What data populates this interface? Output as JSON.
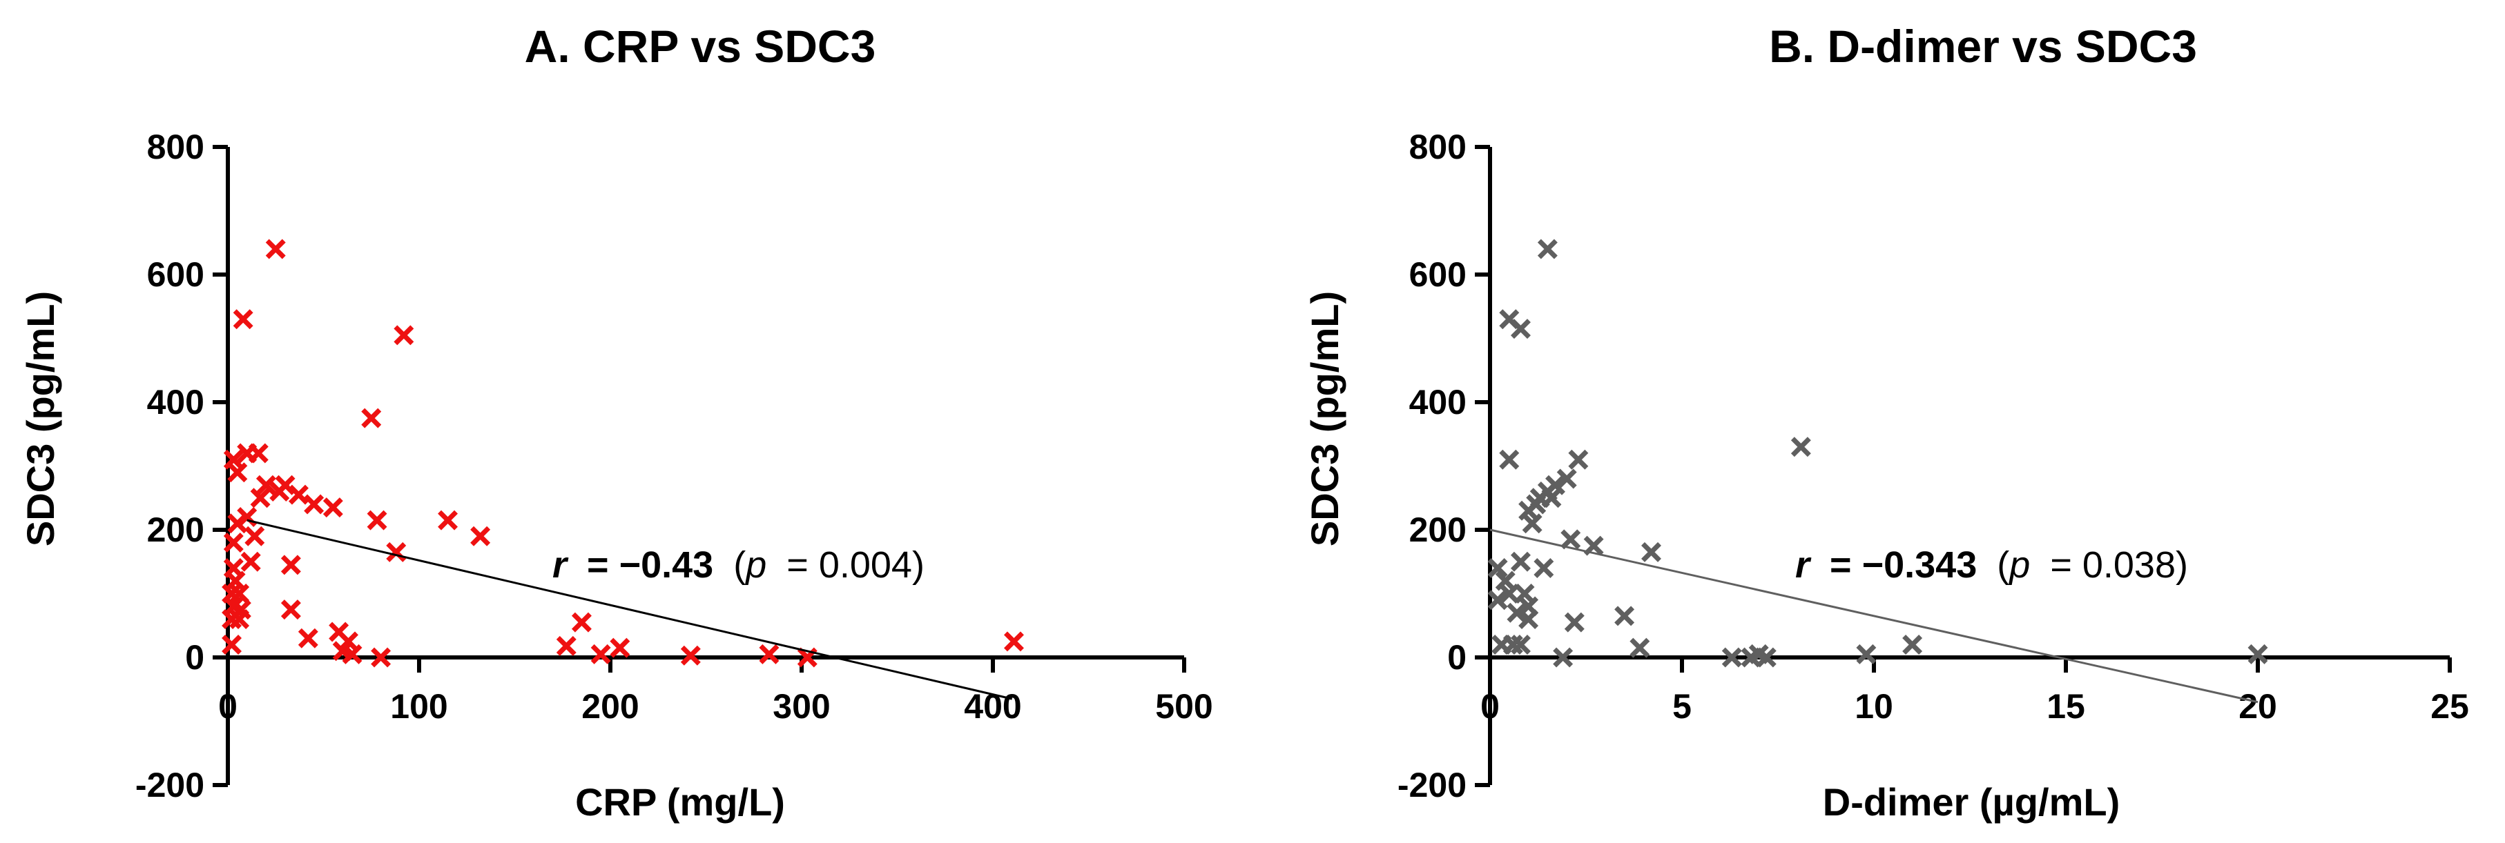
{
  "chart_data": [
    {
      "type": "scatter",
      "panel": "A",
      "title": "A. CRP vs SDC3",
      "xlabel": "CRP (mg/L)",
      "ylabel": "SDC3 (pg/mL)",
      "xlim": [
        0,
        500
      ],
      "ylim": [
        -200,
        800
      ],
      "xticks": [
        0,
        100,
        200,
        300,
        400,
        500
      ],
      "xtick_labels": [
        "0",
        "100",
        "200",
        "300",
        "400",
        "500"
      ],
      "yticks": [
        -200,
        0,
        200,
        400,
        600,
        800
      ],
      "ytick_labels": [
        "-200",
        "0",
        "200",
        "400",
        "600",
        "800"
      ],
      "marker": "x",
      "color": "#ee1111",
      "annotation": {
        "r_label": "r",
        "r_value": "= −0.43",
        "p_open": "(",
        "p_label": "p",
        "p_value": "= 0.004)"
      },
      "regression": {
        "x": [
          10,
          410
        ],
        "y": [
          215,
          -65
        ],
        "color": "#000000"
      },
      "points": [
        [
          2,
          20
        ],
        [
          2,
          60
        ],
        [
          3,
          80
        ],
        [
          2,
          100
        ],
        [
          4,
          120
        ],
        [
          3,
          140
        ],
        [
          3,
          180
        ],
        [
          5,
          210
        ],
        [
          3,
          310
        ],
        [
          5,
          290
        ],
        [
          6,
          100
        ],
        [
          6,
          60
        ],
        [
          7,
          75
        ],
        [
          8,
          530
        ],
        [
          10,
          320
        ],
        [
          10,
          220
        ],
        [
          12,
          150
        ],
        [
          14,
          190
        ],
        [
          16,
          320
        ],
        [
          17,
          250
        ],
        [
          20,
          270
        ],
        [
          25,
          640
        ],
        [
          27,
          260
        ],
        [
          30,
          270
        ],
        [
          33,
          145
        ],
        [
          33,
          75
        ],
        [
          37,
          255
        ],
        [
          42,
          30
        ],
        [
          45,
          240
        ],
        [
          55,
          235
        ],
        [
          58,
          40
        ],
        [
          60,
          10
        ],
        [
          63,
          25
        ],
        [
          65,
          5
        ],
        [
          75,
          375
        ],
        [
          78,
          215
        ],
        [
          80,
          0
        ],
        [
          88,
          165
        ],
        [
          92,
          505
        ],
        [
          115,
          215
        ],
        [
          132,
          190
        ],
        [
          177,
          18
        ],
        [
          185,
          55
        ],
        [
          195,
          5
        ],
        [
          205,
          15
        ],
        [
          242,
          3
        ],
        [
          283,
          5
        ],
        [
          303,
          0
        ],
        [
          411,
          25
        ]
      ]
    },
    {
      "type": "scatter",
      "panel": "B",
      "title": "B. D-dimer vs SDC3",
      "xlabel": "D-dimer (µg/mL)",
      "ylabel": "SDC3 (pg/mL)",
      "xlim": [
        0,
        25
      ],
      "ylim": [
        -200,
        800
      ],
      "xticks": [
        0,
        5,
        10,
        15,
        20,
        25
      ],
      "xtick_labels": [
        "0",
        "5",
        "10",
        "15",
        "20",
        "25"
      ],
      "yticks": [
        -200,
        0,
        200,
        400,
        600,
        800
      ],
      "ytick_labels": [
        "-200",
        "0",
        "200",
        "400",
        "600",
        "800"
      ],
      "marker": "x",
      "color": "#5f5f5f",
      "annotation": {
        "r_label": "r",
        "r_value": "= −0.343",
        "p_open": "(",
        "p_label": "p",
        "p_value": "= 0.038)"
      },
      "regression": {
        "x": [
          0,
          20
        ],
        "y": [
          200,
          -70
        ],
        "color": "#5f5f5f"
      },
      "points": [
        [
          0.2,
          140
        ],
        [
          0.2,
          90
        ],
        [
          0.3,
          20
        ],
        [
          0.4,
          120
        ],
        [
          0.5,
          310
        ],
        [
          0.5,
          530
        ],
        [
          0.5,
          100
        ],
        [
          0.6,
          20
        ],
        [
          0.7,
          70
        ],
        [
          0.8,
          515
        ],
        [
          0.8,
          150
        ],
        [
          0.8,
          20
        ],
        [
          0.9,
          100
        ],
        [
          1.0,
          60
        ],
        [
          1.0,
          230
        ],
        [
          1.0,
          80
        ],
        [
          1.1,
          210
        ],
        [
          1.2,
          240
        ],
        [
          1.3,
          250
        ],
        [
          1.4,
          140
        ],
        [
          1.5,
          260
        ],
        [
          1.5,
          640
        ],
        [
          1.6,
          250
        ],
        [
          1.7,
          270
        ],
        [
          1.9,
          0
        ],
        [
          2.0,
          280
        ],
        [
          2.1,
          185
        ],
        [
          2.2,
          55
        ],
        [
          2.3,
          310
        ],
        [
          2.7,
          175
        ],
        [
          3.5,
          65
        ],
        [
          3.9,
          15
        ],
        [
          4.2,
          165
        ],
        [
          6.3,
          0
        ],
        [
          6.8,
          0
        ],
        [
          7.0,
          5
        ],
        [
          7.2,
          0
        ],
        [
          8.1,
          330
        ],
        [
          9.8,
          5
        ],
        [
          11.0,
          20
        ],
        [
          20.0,
          5
        ]
      ]
    }
  ]
}
